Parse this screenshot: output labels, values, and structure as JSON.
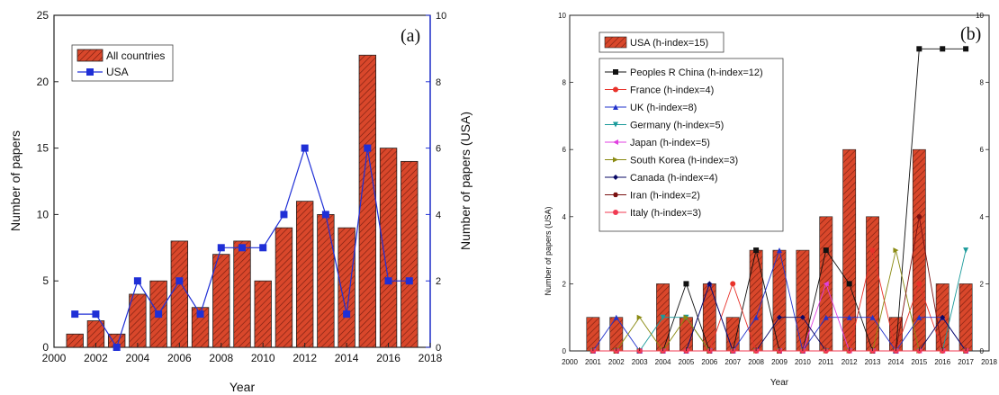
{
  "chart_data": [
    {
      "type": "bar",
      "panel_label": "(a)",
      "xlabel": "Year",
      "ylabel": "Number of papers",
      "y2label": "Number of papers (USA)",
      "xlim": [
        2000,
        2018
      ],
      "ylim": [
        0,
        25
      ],
      "y2lim": [
        0,
        10
      ],
      "x_ticks": [
        "2000",
        "2002",
        "2004",
        "2006",
        "2008",
        "2010",
        "2012",
        "2014",
        "2016",
        "2018"
      ],
      "y_ticks": [
        "0",
        "5",
        "10",
        "15",
        "20",
        "25"
      ],
      "y2_ticks": [
        "0",
        "2",
        "4",
        "6",
        "8",
        "10"
      ],
      "legend_position": "top-left",
      "grid": false,
      "x": [
        2001,
        2002,
        2003,
        2004,
        2005,
        2006,
        2007,
        2008,
        2009,
        2010,
        2011,
        2012,
        2013,
        2014,
        2015,
        2016,
        2017
      ],
      "series": [
        {
          "name": "All countries",
          "kind": "bar",
          "axis": "left",
          "color": "#d9472b",
          "values": [
            1,
            2,
            1,
            4,
            5,
            8,
            3,
            7,
            8,
            5,
            9,
            11,
            10,
            9,
            22,
            15,
            14
          ]
        },
        {
          "name": "USA",
          "kind": "line",
          "axis": "right",
          "color": "#1f2fd6",
          "marker": "square",
          "values": [
            1,
            1,
            0,
            2,
            1,
            2,
            1,
            3,
            3,
            3,
            4,
            6,
            4,
            1,
            6,
            2,
            2
          ]
        }
      ]
    },
    {
      "type": "bar",
      "panel_label": "(b)",
      "xlabel": "Year",
      "ylabel": "Number of papers (USA)",
      "xlim": [
        2000,
        2018
      ],
      "ylim": [
        0,
        10
      ],
      "x_ticks": [
        "2000",
        "2001",
        "2002",
        "2003",
        "2004",
        "2005",
        "2006",
        "2007",
        "2008",
        "2009",
        "2010",
        "2011",
        "2012",
        "2013",
        "2014",
        "2015",
        "2016",
        "2017",
        "2018"
      ],
      "y_ticks": [
        "0",
        "2",
        "4",
        "6",
        "8",
        "10"
      ],
      "y2_ticks": [
        "0",
        "2",
        "4",
        "6",
        "8",
        "10"
      ],
      "legend_position": "top-left",
      "grid": false,
      "x": [
        2001,
        2002,
        2003,
        2004,
        2005,
        2006,
        2007,
        2008,
        2009,
        2010,
        2011,
        2012,
        2013,
        2014,
        2015,
        2016,
        2017
      ],
      "bar_series": {
        "name": "USA (h-index=15)",
        "color": "#d9472b",
        "values": [
          1,
          1,
          0,
          2,
          1,
          2,
          1,
          3,
          3,
          3,
          4,
          6,
          4,
          1,
          6,
          2,
          2
        ]
      },
      "line_series": [
        {
          "name": "Peoples R China (h-index=12)",
          "color": "#111111",
          "marker": "square",
          "values": [
            0,
            0,
            0,
            0,
            2,
            0,
            0,
            3,
            0,
            0,
            3,
            2,
            0,
            0,
            9,
            9,
            9
          ]
        },
        {
          "name": "France (h-index=4)",
          "color": "#e8322a",
          "marker": "circle",
          "values": [
            0,
            0,
            0,
            0,
            0,
            0,
            2,
            0,
            0,
            0,
            0,
            0,
            3,
            0,
            2,
            0,
            0
          ]
        },
        {
          "name": "UK (h-index=8)",
          "color": "#2233cc",
          "marker": "triangle-up",
          "values": [
            0,
            1,
            0,
            0,
            0,
            2,
            0,
            1,
            3,
            0,
            1,
            1,
            1,
            0,
            1,
            1,
            0
          ]
        },
        {
          "name": "Germany (h-index=5)",
          "color": "#1a9a9a",
          "marker": "triangle-down",
          "values": [
            0,
            0,
            0,
            1,
            1,
            0,
            0,
            0,
            0,
            0,
            0,
            0,
            0,
            0,
            0,
            0,
            3
          ]
        },
        {
          "name": "Japan (h-index=5)",
          "color": "#e040e0",
          "marker": "triangle-left",
          "values": [
            0,
            0,
            0,
            0,
            0,
            0,
            0,
            0,
            0,
            0,
            2,
            0,
            0,
            0,
            0,
            0,
            0
          ]
        },
        {
          "name": "South Korea (h-index=3)",
          "color": "#8a8a12",
          "marker": "triangle-right",
          "values": [
            0,
            0,
            1,
            0,
            1,
            0,
            0,
            0,
            0,
            0,
            0,
            0,
            0,
            3,
            0,
            0,
            0
          ]
        },
        {
          "name": "Canada (h-index=4)",
          "color": "#0a0a66",
          "marker": "diamond",
          "values": [
            0,
            0,
            0,
            0,
            0,
            2,
            0,
            0,
            1,
            1,
            0,
            0,
            0,
            0,
            0,
            1,
            0
          ]
        },
        {
          "name": "Iran (h-index=2)",
          "color": "#7a1010",
          "marker": "hexagon",
          "values": [
            0,
            0,
            0,
            0,
            0,
            0,
            0,
            0,
            0,
            0,
            0,
            0,
            0,
            0,
            4,
            0,
            0
          ]
        },
        {
          "name": "Italy (h-index=3)",
          "color": "#f03a52",
          "marker": "circle",
          "values": [
            0,
            0,
            0,
            0,
            0,
            0,
            0,
            0,
            0,
            0,
            0,
            0,
            0,
            0,
            0,
            0,
            0
          ]
        }
      ]
    }
  ]
}
